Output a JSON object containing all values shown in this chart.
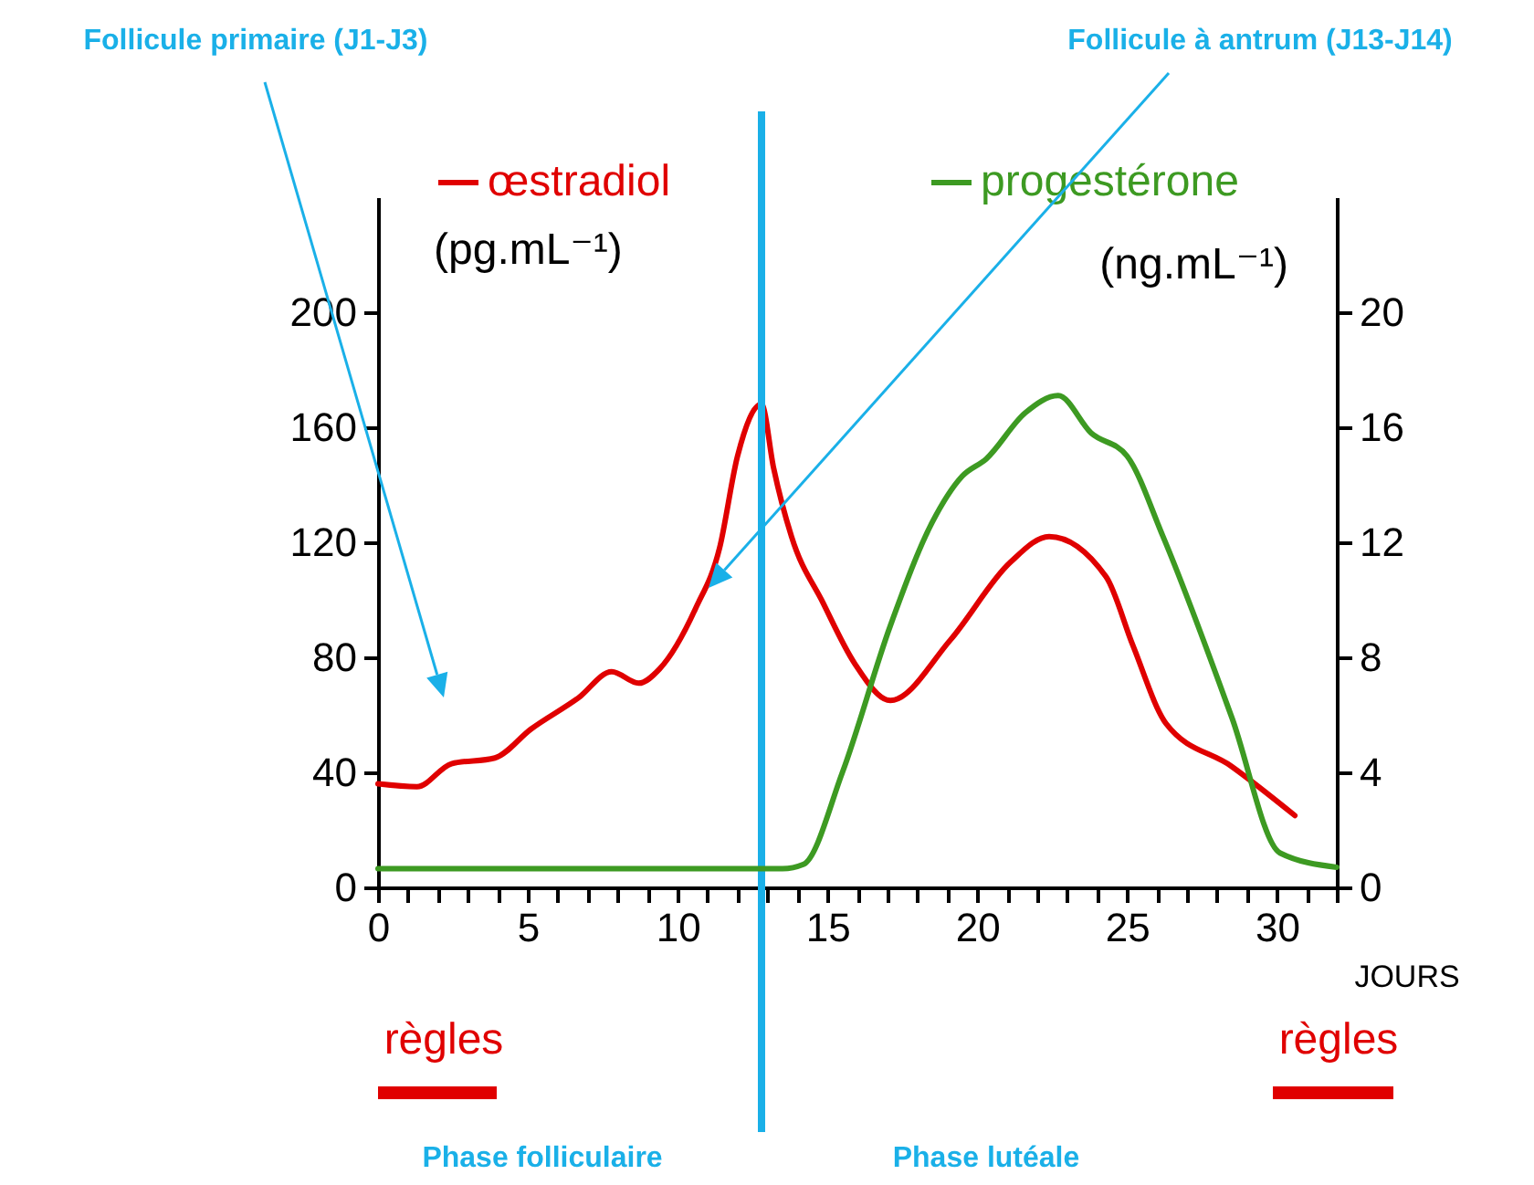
{
  "chart_data": {
    "type": "line",
    "xlabel": "JOURS",
    "ylabel": "(pg.mL⁻¹)",
    "y2label": "(ng.mL⁻¹)",
    "xlim": [
      0,
      32
    ],
    "ylim": [
      0,
      240
    ],
    "y2lim": [
      0,
      24
    ],
    "xticks": [
      0,
      {
        "value": 1,
        "label": null
      },
      {
        "value": 2,
        "label": null
      },
      {
        "value": 3,
        "label": null
      },
      {
        "value": 4,
        "label": null
      },
      5,
      {
        "value": 6,
        "label": null
      },
      {
        "value": 7,
        "label": null
      },
      {
        "value": 8,
        "label": null
      },
      {
        "value": 9,
        "label": null
      },
      10,
      {
        "value": 11,
        "label": null
      },
      {
        "value": 12,
        "label": null
      },
      {
        "value": 13,
        "label": null
      },
      {
        "value": 14,
        "label": null
      },
      15,
      {
        "value": 16,
        "label": null
      },
      {
        "value": 17,
        "label": null
      },
      {
        "value": 18,
        "label": null
      },
      {
        "value": 19,
        "label": null
      },
      20,
      {
        "value": 21,
        "label": null
      },
      {
        "value": 22,
        "label": null
      },
      {
        "value": 23,
        "label": null
      },
      {
        "value": 24,
        "label": null
      },
      25,
      {
        "value": 26,
        "label": null
      },
      {
        "value": 27,
        "label": null
      },
      {
        "value": 28,
        "label": null
      },
      {
        "value": 29,
        "label": null
      },
      30,
      {
        "value": 31,
        "label": null
      },
      {
        "value": 32,
        "label": null
      }
    ],
    "yticks": [
      0,
      40,
      80,
      120,
      160,
      200
    ],
    "y2ticks": [
      0,
      4,
      8,
      12,
      16,
      20
    ],
    "legend": "top",
    "series": [
      {
        "name": "œstradiol",
        "color": "#e00000",
        "x": [
          0,
          1.3,
          2.45,
          3.9,
          5.1,
          6.7,
          7.8,
          8.7,
          9.4,
          10.6,
          11.4,
          12,
          12.8,
          13.2,
          13.8,
          14.85,
          15.9,
          17.1,
          19.1,
          21.1,
          22.4,
          24.3,
          25.2,
          26.3,
          28.5,
          30.6
        ],
        "values": [
          36,
          35,
          43,
          45,
          55,
          66,
          75,
          71,
          76,
          97,
          118,
          150,
          168,
          146,
          122,
          99,
          78,
          65,
          86,
          113,
          122,
          108,
          84,
          57,
          42,
          25
        ]
      },
      {
        "name": "progestérone",
        "color": "#3d9a22",
        "axis": "y2",
        "x": [
          0,
          4,
          8,
          12,
          13.5,
          14.2,
          15.5,
          17.1,
          18.5,
          19.5,
          20.3,
          21.6,
          22.7,
          23.8,
          25,
          26.2,
          28.5,
          30.1,
          32
        ],
        "values": [
          0.65,
          0.65,
          0.65,
          0.65,
          0.65,
          0.8,
          4,
          9.1,
          12.7,
          14.3,
          14.9,
          16.5,
          17.1,
          15.8,
          15,
          12.2,
          5.9,
          1.2,
          0.7
        ]
      }
    ],
    "ref_lines": [
      {
        "axis": "x",
        "value": 12.8,
        "color": "#1ab0e8"
      }
    ],
    "annotations": [
      "Follicule primaire (J1-J3)",
      "Follicule à antrum (J13-J14)",
      "règles",
      "règles",
      "Phase folliculaire",
      "Phase lutéale"
    ]
  }
}
